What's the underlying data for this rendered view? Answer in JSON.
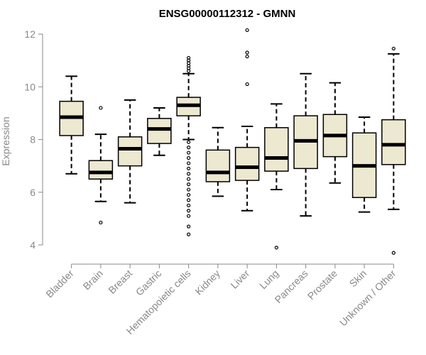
{
  "chart_data": {
    "type": "boxplot",
    "title": "ENSG00000112312 - GMNN",
    "xlabel": "",
    "ylabel": "Expression",
    "ylim": [
      3.3,
      12.5
    ],
    "yticks": [
      4,
      6,
      8,
      10,
      12
    ],
    "box_color": "#ede8d0",
    "categories": [
      "Bladder",
      "Brain",
      "Breast",
      "Gastric",
      "Hematopoietic cells",
      "Kidney",
      "Liver",
      "Lung",
      "Pancreas",
      "Prostate",
      "Skin",
      "Unknown / Other"
    ],
    "boxes": [
      {
        "min": 6.7,
        "q1": 8.15,
        "median": 8.85,
        "q3": 9.45,
        "max": 10.4,
        "outliers": []
      },
      {
        "min": 5.65,
        "q1": 6.5,
        "median": 6.75,
        "q3": 7.2,
        "max": 8.2,
        "outliers": [
          9.2,
          4.85
        ]
      },
      {
        "min": 5.6,
        "q1": 7.0,
        "median": 7.65,
        "q3": 8.1,
        "max": 9.5,
        "outliers": []
      },
      {
        "min": 7.4,
        "q1": 7.85,
        "median": 8.4,
        "q3": 8.8,
        "max": 9.2,
        "outliers": []
      },
      {
        "min": 8.0,
        "q1": 8.9,
        "median": 9.3,
        "q3": 9.6,
        "max": 10.5,
        "outliers": [
          11.1,
          11.0,
          10.9,
          10.8,
          10.7,
          10.6,
          7.9,
          7.7,
          7.5,
          7.3,
          7.1,
          6.9,
          6.7,
          6.5,
          6.3,
          6.1,
          5.9,
          5.7,
          5.5,
          5.3,
          5.1,
          4.7,
          4.4
        ]
      },
      {
        "min": 5.85,
        "q1": 6.4,
        "median": 6.75,
        "q3": 7.6,
        "max": 8.45,
        "outliers": []
      },
      {
        "min": 5.3,
        "q1": 6.45,
        "median": 6.95,
        "q3": 7.7,
        "max": 8.5,
        "outliers": [
          12.15,
          11.3,
          11.15,
          10.1
        ]
      },
      {
        "min": 6.1,
        "q1": 6.8,
        "median": 7.3,
        "q3": 8.45,
        "max": 9.35,
        "outliers": [
          3.9
        ]
      },
      {
        "min": 5.1,
        "q1": 6.9,
        "median": 7.95,
        "q3": 8.9,
        "max": 10.5,
        "outliers": []
      },
      {
        "min": 6.35,
        "q1": 7.35,
        "median": 8.15,
        "q3": 8.95,
        "max": 10.15,
        "outliers": []
      },
      {
        "min": 5.25,
        "q1": 5.8,
        "median": 7.0,
        "q3": 8.25,
        "max": 8.85,
        "outliers": []
      },
      {
        "min": 5.35,
        "q1": 7.05,
        "median": 7.8,
        "q3": 8.75,
        "max": 11.25,
        "outliers": [
          11.45,
          3.7
        ]
      }
    ]
  }
}
